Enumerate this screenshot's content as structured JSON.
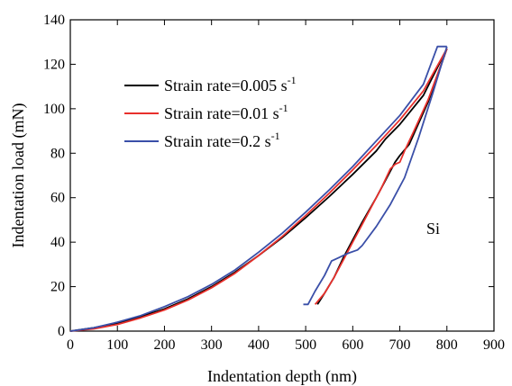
{
  "chart_data": {
    "type": "line",
    "xlabel": "Indentation depth (nm)",
    "ylabel": "Indentation load (mN)",
    "xlim": [
      0,
      900
    ],
    "ylim": [
      0,
      140
    ],
    "x_ticks": [
      0,
      100,
      200,
      300,
      400,
      500,
      600,
      700,
      800,
      900
    ],
    "y_ticks": [
      0,
      20,
      40,
      60,
      80,
      100,
      120,
      140
    ],
    "grid": false,
    "legend_position": "top-left",
    "annotation": "Si",
    "series": [
      {
        "name": "Strain rate=0.005 s",
        "name_sup": "-1",
        "color": "#000000",
        "loading": [
          [
            0,
            0
          ],
          [
            50,
            1.5
          ],
          [
            100,
            3.5
          ],
          [
            150,
            6.5
          ],
          [
            200,
            10
          ],
          [
            250,
            14.5
          ],
          [
            300,
            20
          ],
          [
            350,
            26.5
          ],
          [
            400,
            34
          ],
          [
            450,
            42
          ],
          [
            500,
            51
          ],
          [
            550,
            60.5
          ],
          [
            600,
            70.5
          ],
          [
            650,
            81
          ],
          [
            670,
            86.5
          ],
          [
            700,
            93
          ],
          [
            750,
            106
          ],
          [
            800,
            127
          ]
        ],
        "unloading": [
          [
            800,
            127
          ],
          [
            760,
            103
          ],
          [
            720,
            84
          ],
          [
            700,
            79
          ],
          [
            690,
            76
          ],
          [
            670,
            68
          ],
          [
            650,
            60
          ],
          [
            620,
            49
          ],
          [
            600,
            41
          ],
          [
            580,
            33
          ],
          [
            560,
            24
          ],
          [
            540,
            17
          ],
          [
            525,
            12
          ]
        ]
      },
      {
        "name": "Strain rate=0.01 s",
        "name_sup": "-1",
        "color": "#e8302c",
        "loading": [
          [
            0,
            0
          ],
          [
            50,
            1
          ],
          [
            100,
            3
          ],
          [
            150,
            6
          ],
          [
            200,
            9.5
          ],
          [
            250,
            14
          ],
          [
            300,
            19.5
          ],
          [
            350,
            26
          ],
          [
            400,
            34
          ],
          [
            450,
            42.5
          ],
          [
            500,
            52
          ],
          [
            550,
            62
          ],
          [
            600,
            72.5
          ],
          [
            650,
            83.5
          ],
          [
            700,
            95
          ],
          [
            750,
            108
          ],
          [
            800,
            127
          ]
        ],
        "unloading": [
          [
            800,
            127
          ],
          [
            760,
            104
          ],
          [
            730,
            90
          ],
          [
            710,
            81
          ],
          [
            700,
            76
          ],
          [
            690,
            75
          ],
          [
            680,
            73
          ],
          [
            660,
            64
          ],
          [
            640,
            56
          ],
          [
            620,
            48
          ],
          [
            600,
            40
          ],
          [
            580,
            32
          ],
          [
            560,
            24
          ],
          [
            540,
            17
          ],
          [
            520,
            12
          ]
        ]
      },
      {
        "name": "Strain rate=0.2 s",
        "name_sup": "-1",
        "color": "#3a4fa8",
        "loading": [
          [
            0,
            0
          ],
          [
            50,
            1.5
          ],
          [
            100,
            4
          ],
          [
            150,
            7
          ],
          [
            200,
            11
          ],
          [
            250,
            15.5
          ],
          [
            300,
            21
          ],
          [
            350,
            27.5
          ],
          [
            400,
            35.5
          ],
          [
            450,
            44
          ],
          [
            500,
            53.5
          ],
          [
            550,
            63.5
          ],
          [
            600,
            74
          ],
          [
            650,
            85.5
          ],
          [
            700,
            97
          ],
          [
            750,
            111
          ],
          [
            780,
            128
          ],
          [
            800,
            128
          ]
        ],
        "unloading": [
          [
            800,
            128
          ],
          [
            770,
            107
          ],
          [
            740,
            87
          ],
          [
            710,
            69
          ],
          [
            680,
            57
          ],
          [
            650,
            47
          ],
          [
            620,
            38.5
          ],
          [
            610,
            36.5
          ],
          [
            590,
            35
          ],
          [
            570,
            33
          ],
          [
            555,
            31.5
          ],
          [
            540,
            25
          ],
          [
            520,
            18
          ],
          [
            505,
            12
          ],
          [
            495,
            12
          ]
        ]
      }
    ]
  }
}
